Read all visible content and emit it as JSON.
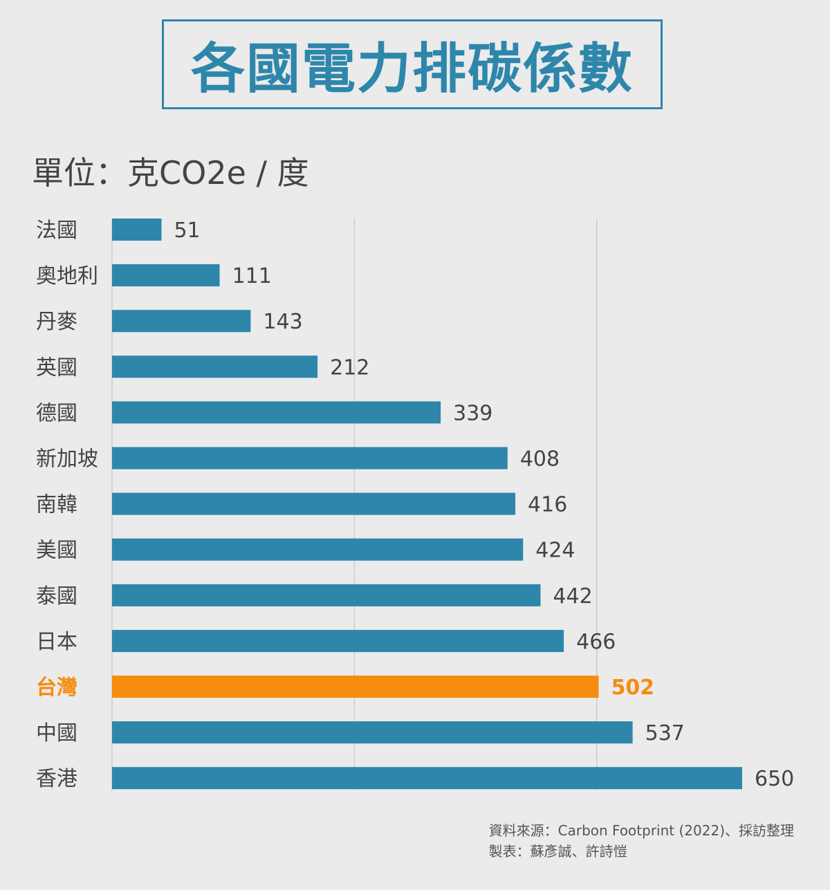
{
  "title": "各國電力排碳係數",
  "unit_label": "單位：克CO2e / 度",
  "source": "資料來源：Carbon Footprint (2022)、採訪整理",
  "credit": "製表：蘇彥誠、許詩愷",
  "colors": {
    "bar": "#2e86ab",
    "highlight": "#f68c0e",
    "label": "#444444",
    "grid": "#cccccc"
  },
  "chart_data": {
    "type": "bar",
    "orientation": "horizontal",
    "categories": [
      "法國",
      "奧地利",
      "丹麥",
      "英國",
      "德國",
      "新加坡",
      "南韓",
      "美國",
      "泰國",
      "日本",
      "台灣",
      "中國",
      "香港"
    ],
    "values": [
      51,
      111,
      143,
      212,
      339,
      408,
      416,
      424,
      442,
      466,
      502,
      537,
      650
    ],
    "highlight": "台灣",
    "xlim": [
      0,
      650
    ],
    "gridlines": [
      250,
      500
    ],
    "grid": true
  }
}
